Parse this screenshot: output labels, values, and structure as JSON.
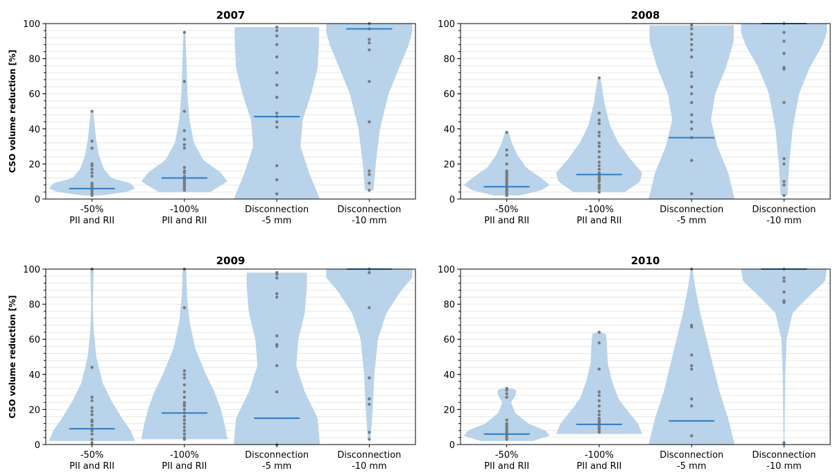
{
  "chart_data": {
    "type": "violin",
    "ylabel": "CSO volume reduction  [%]",
    "ylim": [
      0,
      100
    ],
    "yticks": [
      "0",
      "20",
      "40",
      "60",
      "80",
      "100"
    ],
    "grid": "horizontal-minor",
    "categories": [
      {
        "line1": "-50%",
        "line2": "PII and RII"
      },
      {
        "line1": "-100%",
        "line2": "PII and RII"
      },
      {
        "line1": "Disconnection",
        "line2": "-5 mm"
      },
      {
        "line1": "Disconnection",
        "line2": "-10 mm"
      }
    ],
    "colors": {
      "violin": "#b8d3ea",
      "median": "#2e7bbf",
      "points": "#7a7a7a",
      "axis": "#000000",
      "grid": "#e6e6e6"
    },
    "panels": [
      {
        "title": "2007",
        "violins": [
          {
            "median": 6,
            "profile": [
              [
                2,
                0.2
              ],
              [
                4,
                0.8
              ],
              [
                6,
                1.0
              ],
              [
                9,
                0.9
              ],
              [
                12,
                0.45
              ],
              [
                17,
                0.28
              ],
              [
                25,
                0.16
              ],
              [
                35,
                0.09
              ],
              [
                45,
                0.05
              ],
              [
                50,
                0.03
              ]
            ],
            "points": [
              2,
              3,
              4,
              5,
              6,
              7,
              8,
              9,
              13,
              15,
              17,
              19,
              20,
              29,
              33,
              50
            ]
          },
          {
            "median": 12,
            "profile": [
              [
                4,
                0.6
              ],
              [
                10,
                1.0
              ],
              [
                15,
                0.85
              ],
              [
                22,
                0.45
              ],
              [
                32,
                0.22
              ],
              [
                45,
                0.12
              ],
              [
                60,
                0.07
              ],
              [
                75,
                0.05
              ],
              [
                90,
                0.03
              ],
              [
                95,
                0.02
              ]
            ],
            "points": [
              5,
              6,
              7,
              8,
              9,
              10,
              11,
              13,
              15,
              16,
              18,
              29,
              31,
              34,
              39,
              50,
              67,
              95
            ]
          },
          {
            "median": 47,
            "profile": [
              [
                0,
                1.0
              ],
              [
                15,
                0.75
              ],
              [
                30,
                0.55
              ],
              [
                45,
                0.6
              ],
              [
                60,
                0.8
              ],
              [
                75,
                0.95
              ],
              [
                90,
                0.98
              ],
              [
                98,
                0.98
              ]
            ],
            "points": [
              3,
              11,
              19,
              41,
              44,
              47,
              49,
              58,
              65,
              72,
              81,
              88,
              93,
              96,
              98
            ]
          },
          {
            "median": 97,
            "profile": [
              [
                5,
                0.1
              ],
              [
                20,
                0.15
              ],
              [
                40,
                0.25
              ],
              [
                60,
                0.45
              ],
              [
                75,
                0.7
              ],
              [
                88,
                0.92
              ],
              [
                95,
                1.0
              ],
              [
                100,
                1.0
              ]
            ],
            "points": [
              5,
              9,
              14,
              16,
              44,
              67,
              85,
              89,
              91,
              97,
              100
            ]
          }
        ]
      },
      {
        "title": "2008",
        "violins": [
          {
            "median": 7,
            "profile": [
              [
                2,
                0.3
              ],
              [
                5,
                0.8
              ],
              [
                8,
                1.0
              ],
              [
                12,
                0.8
              ],
              [
                18,
                0.45
              ],
              [
                25,
                0.25
              ],
              [
                32,
                0.12
              ],
              [
                38,
                0.04
              ]
            ],
            "points": [
              2,
              3,
              4,
              5,
              5,
              6,
              7,
              7,
              8,
              9,
              10,
              11,
              12,
              13,
              14,
              15,
              16,
              20,
              25,
              28,
              38
            ]
          },
          {
            "median": 14,
            "profile": [
              [
                4,
                0.6
              ],
              [
                10,
                0.95
              ],
              [
                15,
                1.0
              ],
              [
                22,
                0.75
              ],
              [
                32,
                0.45
              ],
              [
                42,
                0.25
              ],
              [
                55,
                0.12
              ],
              [
                65,
                0.06
              ],
              [
                69,
                0.03
              ]
            ],
            "points": [
              4,
              6,
              7,
              8,
              10,
              11,
              12,
              13,
              14,
              15,
              17,
              19,
              21,
              24,
              27,
              30,
              32,
              36,
              38,
              43,
              45,
              49,
              69
            ]
          },
          {
            "median": 35,
            "profile": [
              [
                0,
                1.0
              ],
              [
                15,
                0.85
              ],
              [
                30,
                0.6
              ],
              [
                45,
                0.45
              ],
              [
                60,
                0.55
              ],
              [
                75,
                0.8
              ],
              [
                90,
                0.98
              ],
              [
                99,
                0.98
              ]
            ],
            "points": [
              3,
              22,
              35,
              40,
              44,
              48,
              55,
              60,
              64,
              70,
              72,
              81,
              85,
              88,
              91,
              94,
              97,
              99
            ]
          },
          {
            "median": 100,
            "profile": [
              [
                2,
                0.08
              ],
              [
                20,
                0.12
              ],
              [
                40,
                0.2
              ],
              [
                60,
                0.35
              ],
              [
                75,
                0.6
              ],
              [
                88,
                0.9
              ],
              [
                95,
                1.0
              ],
              [
                100,
                1.0
              ]
            ],
            "points": [
              2,
              8,
              10,
              20,
              23,
              55,
              74,
              75,
              83,
              90,
              95,
              100
            ]
          }
        ]
      },
      {
        "title": "2009",
        "violins": [
          {
            "median": 9,
            "profile": [
              [
                2,
                1.0
              ],
              [
                8,
                0.9
              ],
              [
                15,
                0.7
              ],
              [
                25,
                0.45
              ],
              [
                35,
                0.25
              ],
              [
                50,
                0.1
              ],
              [
                65,
                0.04
              ],
              [
                80,
                0.02
              ],
              [
                100,
                0.04
              ]
            ],
            "points": [
              1,
              3,
              6,
              8,
              9,
              11,
              13,
              14,
              17,
              19,
              21,
              25,
              27,
              44,
              100
            ]
          },
          {
            "median": 18,
            "profile": [
              [
                3,
                1.0
              ],
              [
                10,
                0.95
              ],
              [
                20,
                0.85
              ],
              [
                30,
                0.7
              ],
              [
                40,
                0.5
              ],
              [
                55,
                0.25
              ],
              [
                70,
                0.12
              ],
              [
                85,
                0.06
              ],
              [
                100,
                0.04
              ]
            ],
            "points": [
              3,
              4,
              6,
              8,
              10,
              12,
              14,
              16,
              18,
              20,
              22,
              23,
              24,
              27,
              30,
              34,
              38,
              40,
              42,
              78,
              100
            ]
          },
          {
            "median": 15,
            "profile": [
              [
                0,
                1.0
              ],
              [
                15,
                0.95
              ],
              [
                30,
                0.65
              ],
              [
                45,
                0.45
              ],
              [
                60,
                0.5
              ],
              [
                75,
                0.65
              ],
              [
                90,
                0.7
              ],
              [
                98,
                0.7
              ]
            ],
            "points": [
              0,
              30,
              45,
              56,
              57,
              62,
              84,
              86,
              95,
              97,
              98
            ]
          },
          {
            "median": 100,
            "profile": [
              [
                3,
                0.03
              ],
              [
                20,
                0.08
              ],
              [
                40,
                0.12
              ],
              [
                60,
                0.2
              ],
              [
                75,
                0.4
              ],
              [
                88,
                0.75
              ],
              [
                95,
                1.0
              ],
              [
                100,
                1.0
              ]
            ],
            "points": [
              3,
              7,
              23,
              26,
              38,
              78,
              98,
              100
            ]
          }
        ]
      },
      {
        "title": "2010",
        "violins": [
          {
            "median": 6,
            "profile": [
              [
                2,
                0.6
              ],
              [
                5,
                1.0
              ],
              [
                8,
                0.9
              ],
              [
                12,
                0.5
              ],
              [
                18,
                0.2
              ],
              [
                24,
                0.1
              ],
              [
                28,
                0.2
              ],
              [
                31,
                0.22
              ],
              [
                32,
                0.1
              ]
            ],
            "points": [
              3,
              4,
              5,
              6,
              7,
              8,
              9,
              10,
              11,
              12,
              14,
              27,
              29,
              31,
              32
            ]
          },
          {
            "median": 11.5,
            "profile": [
              [
                6,
                1.0
              ],
              [
                12,
                0.9
              ],
              [
                18,
                0.7
              ],
              [
                26,
                0.45
              ],
              [
                36,
                0.3
              ],
              [
                46,
                0.2
              ],
              [
                56,
                0.18
              ],
              [
                63,
                0.16
              ],
              [
                64,
                0.04
              ]
            ],
            "points": [
              7,
              8,
              9,
              10,
              11,
              12,
              13,
              14,
              15,
              17,
              19,
              22,
              25,
              28,
              30,
              43,
              58,
              64
            ]
          },
          {
            "median": 13.5,
            "profile": [
              [
                0,
                1.0
              ],
              [
                15,
                0.85
              ],
              [
                30,
                0.65
              ],
              [
                45,
                0.5
              ],
              [
                60,
                0.35
              ],
              [
                75,
                0.2
              ],
              [
                90,
                0.08
              ],
              [
                100,
                0.02
              ]
            ],
            "points": [
              5,
              22,
              26,
              43,
              45,
              51,
              67,
              68,
              100
            ]
          },
          {
            "median": 100,
            "profile": [
              [
                0,
                0.01
              ],
              [
                20,
                0.02
              ],
              [
                40,
                0.03
              ],
              [
                60,
                0.06
              ],
              [
                75,
                0.2
              ],
              [
                85,
                0.6
              ],
              [
                93,
                0.95
              ],
              [
                100,
                1.0
              ]
            ],
            "points": [
              1,
              81,
              82,
              87,
              93,
              95,
              100
            ]
          }
        ]
      }
    ]
  }
}
